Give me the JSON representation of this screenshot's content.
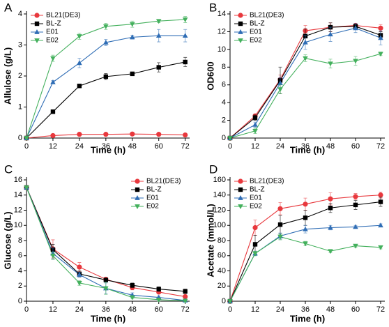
{
  "chart_data": [
    {
      "type": "line",
      "title": "A",
      "xlabel": "Time (h)",
      "ylabel": "Allulose (g/L)",
      "x": [
        0,
        12,
        24,
        36,
        48,
        60,
        72
      ],
      "xlim": [
        0,
        74
      ],
      "xticks": [
        0,
        12,
        24,
        36,
        48,
        60,
        72
      ],
      "ylim": [
        0,
        4
      ],
      "yticks": [
        0,
        1,
        2,
        3,
        4
      ],
      "legend": "upper left",
      "series": [
        {
          "name": "BL21(DE3)",
          "color": "#e8383d",
          "marker": "circle",
          "values": [
            0,
            0.08,
            0.12,
            0.12,
            0.13,
            0.12,
            0.1
          ],
          "errors": [
            0,
            0.02,
            0.02,
            0.02,
            0.02,
            0.02,
            0.02
          ]
        },
        {
          "name": "BL-Z",
          "color": "#000000",
          "marker": "square",
          "values": [
            0,
            0.85,
            1.68,
            1.98,
            2.07,
            2.28,
            2.45
          ],
          "errors": [
            0,
            0.04,
            0.05,
            0.1,
            0.06,
            0.15,
            0.15
          ]
        },
        {
          "name": "E01",
          "color": "#2f6db5",
          "marker": "triangle-up",
          "values": [
            0,
            1.8,
            2.42,
            3.08,
            3.25,
            3.3,
            3.3
          ],
          "errors": [
            0,
            0.05,
            0.15,
            0.1,
            0.06,
            0.2,
            0.2
          ]
        },
        {
          "name": "E02",
          "color": "#43b05c",
          "marker": "triangle-down",
          "values": [
            0,
            2.57,
            3.28,
            3.6,
            3.67,
            3.77,
            3.82
          ],
          "errors": [
            0,
            0.1,
            0.1,
            0.1,
            0.1,
            0.05,
            0.1
          ]
        }
      ]
    },
    {
      "type": "line",
      "title": "B",
      "xlabel": "Time (h)",
      "ylabel": "OD600",
      "x": [
        0,
        12,
        24,
        36,
        48,
        60,
        72
      ],
      "xlim": [
        0,
        74
      ],
      "xticks": [
        0,
        12,
        24,
        36,
        48,
        60,
        72
      ],
      "ylim": [
        0,
        14
      ],
      "yticks": [
        0,
        2,
        4,
        6,
        8,
        10,
        12,
        14
      ],
      "legend": "upper left",
      "series": [
        {
          "name": "BL21(DE3)",
          "color": "#e8383d",
          "marker": "circle",
          "values": [
            0,
            2.5,
            6.6,
            12.1,
            12.5,
            12.7,
            12.4
          ],
          "errors": [
            0,
            0.2,
            0.5,
            0.6,
            0.5,
            0.2,
            0.4
          ]
        },
        {
          "name": "BL-Z",
          "color": "#000000",
          "marker": "square",
          "values": [
            0,
            2.3,
            6.5,
            11.5,
            12.5,
            12.6,
            11.6
          ],
          "errors": [
            0,
            0.3,
            1.5,
            0.8,
            0.5,
            0.3,
            0.4
          ]
        },
        {
          "name": "E01",
          "color": "#2f6db5",
          "marker": "triangle-up",
          "values": [
            0,
            1.5,
            6.2,
            10.8,
            11.7,
            12.4,
            11.3
          ],
          "errors": [
            0,
            0.3,
            0.6,
            0.8,
            0.8,
            0.5,
            0.8
          ]
        },
        {
          "name": "E02",
          "color": "#43b05c",
          "marker": "triangle-down",
          "values": [
            0,
            0.8,
            5.5,
            9.0,
            8.4,
            8.7,
            9.5
          ],
          "errors": [
            0,
            0.3,
            0.5,
            0.4,
            0.5,
            0.5,
            0.2
          ]
        }
      ]
    },
    {
      "type": "line",
      "title": "C",
      "xlabel": "Time (h)",
      "ylabel": "Glucose (g/L)",
      "x": [
        0,
        12,
        24,
        36,
        48,
        60,
        72
      ],
      "xlim": [
        0,
        74
      ],
      "xticks": [
        0,
        12,
        24,
        36,
        48,
        60,
        72
      ],
      "ylim": [
        0,
        16
      ],
      "yticks": [
        0,
        2,
        4,
        6,
        8,
        10,
        12,
        14,
        16
      ],
      "legend": "upper right",
      "series": [
        {
          "name": "BL21(DE3)",
          "color": "#e8383d",
          "marker": "circle",
          "values": [
            15,
            6.9,
            4.5,
            2.9,
            1.8,
            1.2,
            0.6
          ],
          "errors": [
            0,
            1.2,
            0.6,
            0.2,
            0.3,
            0.2,
            0.6
          ]
        },
        {
          "name": "BL-Z",
          "color": "#000000",
          "marker": "square",
          "values": [
            15,
            6.8,
            3.6,
            2.8,
            2.1,
            1.6,
            1.3
          ],
          "errors": [
            0,
            0.7,
            0.4,
            0.2,
            0.3,
            0.3,
            0.3
          ]
        },
        {
          "name": "E01",
          "color": "#2f6db5",
          "marker": "triangle-up",
          "values": [
            15,
            6.3,
            3.5,
            1.7,
            0.8,
            0.5,
            0.1
          ],
          "errors": [
            0,
            0.7,
            0.3,
            0.7,
            0.3,
            0.2,
            0.2
          ]
        },
        {
          "name": "E02",
          "color": "#43b05c",
          "marker": "triangle-down",
          "values": [
            15,
            6.0,
            2.4,
            1.7,
            0.5,
            0.2,
            0.05
          ],
          "errors": [
            0,
            0.5,
            0.3,
            0.8,
            0.2,
            0.2,
            0.1
          ]
        }
      ]
    },
    {
      "type": "line",
      "title": "D",
      "xlabel": "Time (h)",
      "ylabel": "Acetate (mmol/L)",
      "x": [
        0,
        12,
        24,
        36,
        48,
        60,
        72
      ],
      "xlim": [
        0,
        74
      ],
      "xticks": [
        0,
        12,
        24,
        36,
        48,
        60,
        72
      ],
      "ylim": [
        0,
        160
      ],
      "yticks": [
        0,
        20,
        40,
        60,
        80,
        100,
        120,
        140,
        160
      ],
      "legend": "upper left",
      "series": [
        {
          "name": "BL21(DE3)",
          "color": "#e8383d",
          "marker": "circle",
          "values": [
            0,
            97,
            122,
            128,
            135,
            138,
            140
          ],
          "errors": [
            0,
            10,
            8,
            8,
            8,
            4,
            4
          ]
        },
        {
          "name": "BL-Z",
          "color": "#000000",
          "marker": "square",
          "values": [
            0,
            75,
            101,
            110,
            123,
            127,
            131
          ],
          "errors": [
            0,
            12,
            12,
            10,
            6,
            6,
            6
          ]
        },
        {
          "name": "E01",
          "color": "#2f6db5",
          "marker": "triangle-up",
          "values": [
            0,
            63,
            86,
            95,
            97,
            98,
            100
          ],
          "errors": [
            0,
            3,
            4,
            5,
            3,
            2,
            2
          ]
        },
        {
          "name": "E02",
          "color": "#43b05c",
          "marker": "triangle-down",
          "values": [
            0,
            63,
            85,
            76,
            66,
            73,
            71
          ],
          "errors": [
            0,
            3,
            4,
            3,
            2,
            2,
            2
          ]
        }
      ]
    }
  ]
}
